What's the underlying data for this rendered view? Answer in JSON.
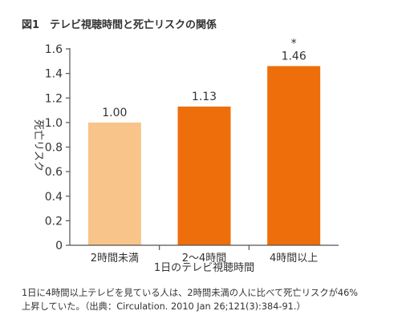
{
  "figure": {
    "title": "図1　テレビ視聴時間と死亡リスクの関係",
    "caption_line1": "1日に4時間以上テレビを見ている人は、2時間未満の人に比べて死亡リスクが46%",
    "caption_line2": "上昇していた。（出典：Circulation. 2010 Jan 26;121(3):384-91.）"
  },
  "chart_data": {
    "type": "bar",
    "categories": [
      "2時間未満",
      "2〜4時間",
      "4時間以上"
    ],
    "values": [
      1.0,
      1.13,
      1.46
    ],
    "value_labels": [
      "1.00",
      "1.13",
      "1.46"
    ],
    "significance_marks": [
      "",
      "",
      "*"
    ],
    "xlabel": "1日のテレビ視聴時間",
    "ylabel": "死亡リスク",
    "ylim": [
      0,
      1.6
    ],
    "yticks": [
      "0",
      "0.2",
      "0.4",
      "0.6",
      "0.8",
      "1.0",
      "1.2",
      "1.4",
      "1.6"
    ],
    "bar_colors": [
      "#F8C48A",
      "#EE6E0C",
      "#EE6E0C"
    ],
    "axis_color": "#555555",
    "grid": false,
    "legend": "none"
  }
}
